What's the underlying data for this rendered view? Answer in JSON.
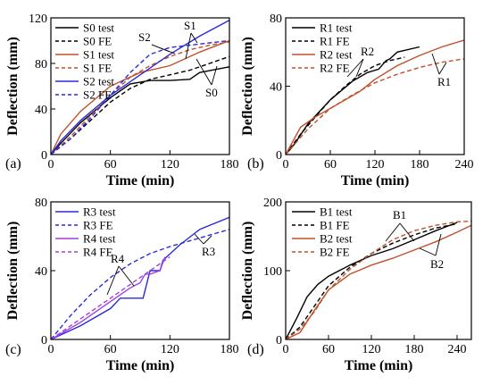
{
  "chart_data": [
    {
      "type": "line",
      "panel_label": "(a)",
      "xlabel": "Time (min)",
      "ylabel": "Deflection (mm)",
      "xlim": [
        0,
        180
      ],
      "ylim": [
        0,
        120
      ],
      "xticks": [
        0,
        60,
        120,
        180
      ],
      "yticks": [
        0,
        40,
        80,
        120
      ],
      "legend": "top-left",
      "series": [
        {
          "name": "S0 test",
          "color": "#000000",
          "dash": false,
          "x": [
            0,
            10,
            30,
            60,
            80,
            100,
            120,
            140,
            150,
            180
          ],
          "y": [
            0,
            10,
            28,
            50,
            62,
            65,
            65,
            66,
            72,
            77
          ]
        },
        {
          "name": "S0 FE",
          "color": "#000000",
          "dash": true,
          "x": [
            0,
            20,
            40,
            60,
            80,
            100,
            120,
            140,
            160,
            180
          ],
          "y": [
            0,
            14,
            30,
            46,
            58,
            66,
            70,
            74,
            80,
            86
          ]
        },
        {
          "name": "S1 test",
          "color": "#c0502a",
          "dash": false,
          "x": [
            0,
            10,
            30,
            60,
            90,
            120,
            150,
            180
          ],
          "y": [
            0,
            18,
            38,
            60,
            72,
            78,
            90,
            100
          ]
        },
        {
          "name": "S1 FE",
          "color": "#c0502a",
          "dash": true,
          "x": [
            0,
            20,
            40,
            60,
            80,
            100,
            120,
            140,
            160,
            180
          ],
          "y": [
            0,
            16,
            34,
            52,
            68,
            78,
            86,
            92,
            96,
            99
          ]
        },
        {
          "name": "S2 test",
          "color": "#2a2adc",
          "dash": false,
          "x": [
            0,
            10,
            30,
            60,
            90,
            120,
            150,
            180
          ],
          "y": [
            0,
            12,
            30,
            52,
            70,
            88,
            104,
            118
          ]
        },
        {
          "name": "S2 FE",
          "color": "#2a2adc",
          "dash": true,
          "x": [
            0,
            20,
            40,
            60,
            80,
            100,
            120,
            140,
            160,
            180
          ],
          "y": [
            0,
            14,
            32,
            52,
            72,
            88,
            94,
            96,
            98,
            100
          ]
        }
      ],
      "annotations": [
        "S0",
        "S1",
        "S2"
      ]
    },
    {
      "type": "line",
      "panel_label": "(b)",
      "xlabel": "Time (min)",
      "ylabel": "Deflection (mm)",
      "xlim": [
        0,
        240
      ],
      "ylim": [
        0,
        80
      ],
      "xticks": [
        0,
        60,
        120,
        180,
        240
      ],
      "yticks": [
        0,
        40,
        80
      ],
      "legend": "top-right",
      "series": [
        {
          "name": "R1 test",
          "color": "#000000",
          "dash": false,
          "x": [
            0,
            10,
            30,
            60,
            90,
            110,
            125,
            135,
            140,
            150,
            180
          ],
          "y": [
            0,
            5,
            18,
            32,
            43,
            48,
            50,
            55,
            56,
            60,
            63
          ]
        },
        {
          "name": "R1 FE",
          "color": "#000000",
          "dash": true,
          "x": [
            0,
            20,
            40,
            60,
            80,
            100,
            120,
            140,
            160
          ],
          "y": [
            0,
            12,
            22,
            32,
            40,
            47,
            52,
            55,
            57
          ]
        },
        {
          "name": "R2 test",
          "color": "#c0502a",
          "dash": false,
          "x": [
            0,
            20,
            40,
            60,
            80,
            100,
            120,
            150,
            180,
            210,
            240
          ],
          "y": [
            0,
            16,
            22,
            27,
            32,
            37,
            44,
            52,
            58,
            63,
            67
          ]
        },
        {
          "name": "R2 FE",
          "color": "#c0502a",
          "dash": true,
          "x": [
            0,
            30,
            60,
            90,
            120,
            150,
            180,
            210,
            240
          ],
          "y": [
            0,
            15,
            27,
            35,
            42,
            47,
            51,
            54,
            56
          ]
        }
      ],
      "annotations": [
        "R1",
        "R2"
      ]
    },
    {
      "type": "line",
      "panel_label": "(c)",
      "xlabel": "Time (min)",
      "ylabel": "Deflection (mm)",
      "xlim": [
        0,
        180
      ],
      "ylim": [
        0,
        80
      ],
      "xticks": [
        0,
        60,
        120,
        180
      ],
      "yticks": [
        0,
        40,
        80
      ],
      "legend": "top-left",
      "series": [
        {
          "name": "R3 test",
          "color": "#2a2adc",
          "dash": false,
          "x": [
            0,
            30,
            60,
            70,
            90,
            93,
            100,
            110,
            113,
            130,
            150,
            180
          ],
          "y": [
            0,
            8,
            18,
            24,
            24,
            24,
            40,
            40,
            46,
            55,
            64,
            71
          ]
        },
        {
          "name": "R3 FE",
          "color": "#2a2adc",
          "dash": true,
          "x": [
            0,
            20,
            40,
            60,
            80,
            100,
            120,
            150,
            180
          ],
          "y": [
            0,
            14,
            26,
            36,
            44,
            50,
            54,
            59,
            64
          ]
        },
        {
          "name": "R4 test",
          "color": "#a040e0",
          "dash": false,
          "x": [
            0,
            30,
            60,
            70,
            80,
            90,
            95,
            100,
            110,
            115
          ],
          "y": [
            0,
            10,
            22,
            26,
            30,
            33,
            38,
            38,
            40,
            48
          ]
        },
        {
          "name": "R4 FE",
          "color": "#a040e0",
          "dash": true,
          "x": [
            0,
            20,
            40,
            60,
            80,
            100,
            120
          ],
          "y": [
            0,
            8,
            16,
            24,
            32,
            40,
            48
          ]
        }
      ],
      "annotations": [
        "R3",
        "R4"
      ]
    },
    {
      "type": "line",
      "panel_label": "(d)",
      "xlabel": "Time (min)",
      "ylabel": "Deflection (mm)",
      "xlim": [
        0,
        260
      ],
      "ylim": [
        0,
        200
      ],
      "xticks": [
        0,
        60,
        120,
        180,
        240
      ],
      "yticks": [
        0,
        100,
        200
      ],
      "legend": "top-left",
      "series": [
        {
          "name": "B1 test",
          "color": "#000000",
          "dash": false,
          "x": [
            0,
            15,
            30,
            45,
            60,
            90,
            120,
            150,
            180,
            210,
            240
          ],
          "y": [
            0,
            30,
            62,
            80,
            92,
            108,
            122,
            132,
            145,
            158,
            170
          ]
        },
        {
          "name": "B1 FE",
          "color": "#000000",
          "dash": true,
          "x": [
            0,
            20,
            40,
            60,
            90,
            120,
            150,
            180,
            210,
            240
          ],
          "y": [
            0,
            18,
            48,
            78,
            105,
            125,
            140,
            152,
            162,
            168
          ]
        },
        {
          "name": "B2 test",
          "color": "#c0502a",
          "dash": false,
          "x": [
            0,
            20,
            40,
            60,
            90,
            120,
            150,
            180,
            210,
            240,
            260
          ],
          "y": [
            0,
            10,
            42,
            72,
            95,
            108,
            118,
            130,
            142,
            156,
            166
          ]
        },
        {
          "name": "B2 FE",
          "color": "#c0502a",
          "dash": true,
          "x": [
            0,
            20,
            40,
            60,
            90,
            120,
            150,
            180,
            210,
            240,
            260
          ],
          "y": [
            0,
            15,
            40,
            72,
            102,
            125,
            145,
            158,
            166,
            171,
            172
          ]
        }
      ],
      "annotations": [
        "B1",
        "B2"
      ]
    }
  ]
}
